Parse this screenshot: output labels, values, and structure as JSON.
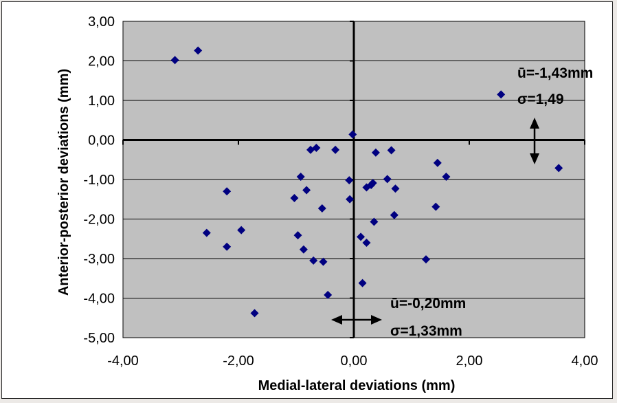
{
  "chart_data": {
    "type": "scatter",
    "title": "",
    "xlabel": "Medial-lateral deviations (mm)",
    "ylabel": "Anterior-posterior deviations (mm)",
    "xlim": [
      -4,
      4
    ],
    "ylim": [
      -5,
      3
    ],
    "x_ticks": [
      "-4,00",
      "-2,00",
      "0,00",
      "2,00",
      "4,00"
    ],
    "x_tick_values": [
      -4,
      -2,
      0,
      2,
      4
    ],
    "y_ticks": [
      "3,00",
      "2,00",
      "1,00",
      "0,00",
      "-1,00",
      "-2,00",
      "-3,00",
      "-4,00",
      "-5,00"
    ],
    "y_tick_values": [
      3,
      2,
      1,
      0,
      -1,
      -2,
      -3,
      -4,
      -5
    ],
    "grid": "horizontal",
    "plot_background": "#c0c0c0",
    "marker_color": "#000080",
    "marker": "diamond",
    "points": [
      {
        "x": -3.1,
        "y": 2.02
      },
      {
        "x": -2.7,
        "y": 2.26
      },
      {
        "x": -2.2,
        "y": -1.3
      },
      {
        "x": -2.55,
        "y": -2.35
      },
      {
        "x": -2.2,
        "y": -2.7
      },
      {
        "x": -1.95,
        "y": -2.28
      },
      {
        "x": -1.72,
        "y": -4.38
      },
      {
        "x": -1.03,
        "y": -1.47
      },
      {
        "x": -0.97,
        "y": -2.41
      },
      {
        "x": -0.92,
        "y": -0.93
      },
      {
        "x": -0.87,
        "y": -2.77
      },
      {
        "x": -0.82,
        "y": -1.27
      },
      {
        "x": -0.75,
        "y": -0.25
      },
      {
        "x": -0.7,
        "y": -3.05
      },
      {
        "x": -0.65,
        "y": -0.2
      },
      {
        "x": -0.55,
        "y": -1.73
      },
      {
        "x": -0.53,
        "y": -3.08
      },
      {
        "x": -0.45,
        "y": -3.92
      },
      {
        "x": -0.32,
        "y": -0.25
      },
      {
        "x": -0.08,
        "y": -1.02
      },
      {
        "x": -0.07,
        "y": -1.5
      },
      {
        "x": -0.02,
        "y": 0.14
      },
      {
        "x": 0.12,
        "y": -2.45
      },
      {
        "x": 0.15,
        "y": -3.62
      },
      {
        "x": 0.22,
        "y": -2.6
      },
      {
        "x": 0.22,
        "y": -1.2
      },
      {
        "x": 0.3,
        "y": -1.14
      },
      {
        "x": 0.33,
        "y": -1.09
      },
      {
        "x": 0.35,
        "y": -2.07
      },
      {
        "x": 0.38,
        "y": -0.32
      },
      {
        "x": 0.58,
        "y": -0.99
      },
      {
        "x": 0.65,
        "y": -0.26
      },
      {
        "x": 0.7,
        "y": -1.9
      },
      {
        "x": 0.72,
        "y": -1.23
      },
      {
        "x": 1.25,
        "y": -3.02
      },
      {
        "x": 1.42,
        "y": -1.69
      },
      {
        "x": 1.45,
        "y": -0.58
      },
      {
        "x": 1.6,
        "y": -0.93
      },
      {
        "x": 2.55,
        "y": 1.15
      },
      {
        "x": 3.55,
        "y": -0.71
      }
    ],
    "annotations": {
      "ap_mean": "ū=-1,43mm",
      "ap_sigma": "σ=1,49",
      "ml_mean": "ū=-0,20mm",
      "ml_sigma": "σ=1,33mm"
    }
  }
}
